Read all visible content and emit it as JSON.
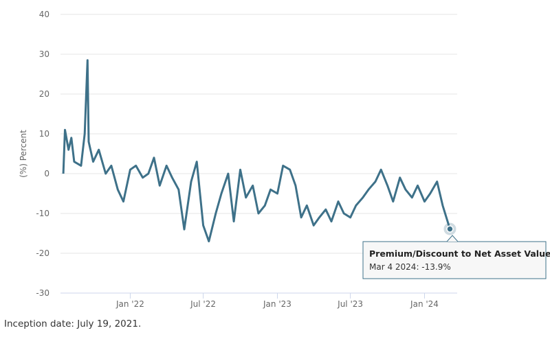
{
  "chart_data": {
    "type": "line",
    "y_label": "(%) Percent",
    "footnote": "Inception date: July 19, 2021.",
    "tooltip": {
      "title": "Premium/Discount to Net Asset Value",
      "text": "Mar 4 2024: -13.9%"
    },
    "color": "#3e7189",
    "grid": true,
    "ylim": [
      -30,
      40
    ],
    "yticks": [
      -30,
      -20,
      -10,
      0,
      10,
      20,
      30,
      40
    ],
    "xlim": [
      "2021-07-12",
      "2024-03-22"
    ],
    "xticks": [
      {
        "value": "2022-01-01",
        "label": "Jan '22"
      },
      {
        "value": "2022-07-01",
        "label": "Jul '22"
      },
      {
        "value": "2023-01-01",
        "label": "Jan '23"
      },
      {
        "value": "2023-07-01",
        "label": "Jul '23"
      },
      {
        "value": "2024-01-01",
        "label": "Jan '24"
      }
    ],
    "x": [
      "2021-07-19",
      "2021-07-23",
      "2021-08-01",
      "2021-08-08",
      "2021-08-15",
      "2021-09-01",
      "2021-09-10",
      "2021-09-17",
      "2021-09-20",
      "2021-10-01",
      "2021-10-15",
      "2021-11-01",
      "2021-11-15",
      "2021-12-01",
      "2021-12-15",
      "2022-01-01",
      "2022-01-15",
      "2022-02-01",
      "2022-02-15",
      "2022-03-01",
      "2022-03-15",
      "2022-04-01",
      "2022-04-15",
      "2022-05-01",
      "2022-05-15",
      "2022-06-01",
      "2022-06-15",
      "2022-07-01",
      "2022-07-15",
      "2022-08-01",
      "2022-08-15",
      "2022-09-01",
      "2022-09-15",
      "2022-10-01",
      "2022-10-15",
      "2022-11-01",
      "2022-11-15",
      "2022-12-01",
      "2022-12-15",
      "2023-01-01",
      "2023-01-15",
      "2023-02-01",
      "2023-02-15",
      "2023-03-01",
      "2023-03-15",
      "2023-04-01",
      "2023-04-15",
      "2023-05-01",
      "2023-05-15",
      "2023-06-01",
      "2023-06-15",
      "2023-07-01",
      "2023-07-15",
      "2023-08-01",
      "2023-08-15",
      "2023-09-01",
      "2023-09-15",
      "2023-10-01",
      "2023-10-15",
      "2023-11-01",
      "2023-11-15",
      "2023-12-01",
      "2023-12-15",
      "2024-01-01",
      "2024-01-15",
      "2024-02-01",
      "2024-02-15",
      "2024-03-04"
    ],
    "values": [
      0,
      11,
      6,
      9,
      3,
      2,
      10,
      28.5,
      8,
      3,
      6,
      0,
      2,
      -4,
      -7,
      1,
      2,
      -1,
      0,
      4,
      -3,
      2,
      -1,
      -4,
      -14,
      -2,
      3,
      -13,
      -17,
      -10,
      -5,
      0,
      -12,
      1,
      -6,
      -3,
      -10,
      -8,
      -4,
      -5,
      2,
      1,
      -3,
      -11,
      -8,
      -13,
      -11,
      -9,
      -12,
      -7,
      -10,
      -11,
      -8,
      -6,
      -4,
      -2,
      1,
      -3,
      -7,
      -1,
      -4,
      -6,
      -3,
      -7,
      -5,
      -2,
      -8,
      -13.9
    ]
  }
}
